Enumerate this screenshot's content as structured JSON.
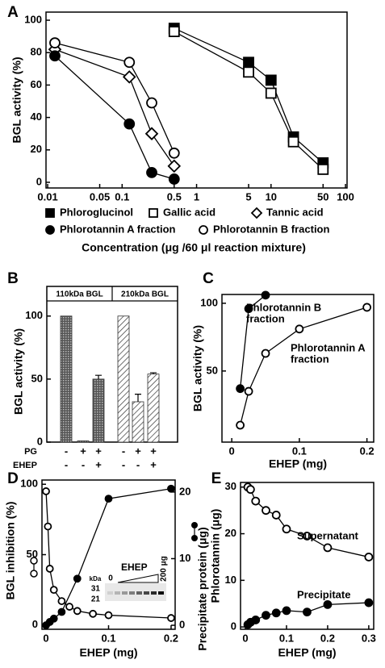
{
  "chart_data": [
    {
      "panel": "A",
      "type": "line",
      "xscale": "log",
      "ylabel": "BGL activity (%)",
      "xlabel": "Concentration (μg /60 μl reaction mixture)",
      "xlim": [
        0.0095,
        105
      ],
      "ylim": [
        -3.5,
        105
      ],
      "xticks": [
        0.01,
        0.05,
        0.1,
        0.5,
        1,
        5,
        10,
        50,
        100
      ],
      "yticks": [
        0,
        20,
        40,
        60,
        80,
        100
      ],
      "series": [
        {
          "name": "Phloroglucinol",
          "color": "#000000",
          "marker": "square",
          "filled": true,
          "x": [
            0.5,
            5,
            10,
            20,
            50
          ],
          "values": [
            95,
            74,
            63,
            28,
            12
          ]
        },
        {
          "name": "Gallic acid",
          "color": "#000000",
          "marker": "square",
          "filled": false,
          "x": [
            0.5,
            5,
            10,
            20,
            50
          ],
          "values": [
            93,
            68,
            55,
            25,
            8
          ]
        },
        {
          "name": "Tannic acid",
          "color": "#000000",
          "marker": "diamond",
          "filled": false,
          "x": [
            0.0125,
            0.125,
            0.25,
            0.5
          ],
          "values": [
            82,
            65,
            30,
            10
          ]
        },
        {
          "name": "Phlorotannin A fraction",
          "color": "#000000",
          "marker": "circle",
          "filled": true,
          "x": [
            0.0125,
            0.125,
            0.25,
            0.5
          ],
          "values": [
            78,
            36,
            6,
            2
          ]
        },
        {
          "name": "Phlorotannin B fraction",
          "color": "#000000",
          "marker": "circle",
          "filled": false,
          "x": [
            0.0125,
            0.125,
            0.25,
            0.5
          ],
          "values": [
            86,
            74,
            49,
            18
          ]
        }
      ]
    },
    {
      "panel": "B",
      "type": "bar",
      "ylabel": "BGL activity (%)",
      "ylim": [
        0,
        112
      ],
      "yticks": [
        0,
        50,
        100
      ],
      "groups": [
        "110kDa BGL",
        "210kDa BGL"
      ],
      "values": [
        100,
        1,
        50,
        100,
        32,
        54
      ],
      "errors": [
        0,
        0,
        3,
        0,
        6,
        1
      ],
      "patterns": [
        "crosshatch",
        "crosshatch",
        "crosshatch",
        "hatch",
        "hatch",
        "hatch"
      ],
      "rows": [
        {
          "label": "PG",
          "signs": [
            "-",
            "+",
            "+",
            "-",
            "+",
            "+"
          ]
        },
        {
          "label": "EHEP",
          "signs": [
            "-",
            "-",
            "+",
            "-",
            "-",
            "+"
          ]
        }
      ]
    },
    {
      "panel": "C",
      "type": "line",
      "ylabel": "BGL activity (%)",
      "xlabel": "EHEP (mg)",
      "xlim": [
        -0.0145,
        0.21
      ],
      "ylim": [
        -2.5,
        106.5
      ],
      "xticks": [
        0,
        0.1,
        0.2
      ],
      "yticks": [
        50,
        100
      ],
      "series": [
        {
          "color": "#000000",
          "marker": "circle",
          "filled": true,
          "x": [
            0.0125,
            0.025,
            0.05
          ],
          "values": [
            37,
            96,
            106
          ]
        },
        {
          "color": "#000000",
          "marker": "circle",
          "filled": false,
          "x": [
            0.0125,
            0.025,
            0.05,
            0.1,
            0.2
          ],
          "values": [
            10,
            35,
            63,
            81,
            97
          ]
        }
      ],
      "annotations": [
        [
          "Phlorotannin B",
          "fraction"
        ],
        [
          "Phlorotannin A",
          "fraction"
        ]
      ]
    },
    {
      "panel": "D",
      "type": "line",
      "ylabel": "BGL inhibition (%)",
      "y2label": "Precipitate protein (μg)",
      "xlabel": "EHEP (mg)",
      "xlim": [
        -0.0065,
        0.2065
      ],
      "ylim": [
        -3,
        103
      ],
      "y2lim": [
        -0.6,
        21.8
      ],
      "xticks": [
        0,
        0.1,
        0.2
      ],
      "yticks": [
        0,
        50,
        100
      ],
      "y2ticks": [
        0,
        10,
        20
      ],
      "series": [
        {
          "color": "#000000",
          "marker": "circle",
          "filled": false,
          "x": [
            0,
            0.003,
            0.006,
            0.0125,
            0.025,
            0.0375,
            0.05,
            0.075,
            0.1,
            0.2
          ],
          "values": [
            95,
            70,
            40,
            25,
            17,
            13,
            10,
            8,
            7,
            5
          ]
        },
        {
          "color": "#000000",
          "marker": "circle",
          "filled": true,
          "axis": "y2",
          "x": [
            0,
            0.006,
            0.0125,
            0.025,
            0.05,
            0.1,
            0.2
          ],
          "values": [
            0,
            0.5,
            1,
            2,
            7,
            19,
            20.5
          ]
        }
      ],
      "inset": {
        "title": "EHEP",
        "max_label": "200 μg",
        "unit": "kDa",
        "markers": [
          "31",
          "21"
        ],
        "lane_start": "0"
      }
    },
    {
      "panel": "E",
      "type": "line",
      "ylabel": "Phlorotannin (μg)",
      "xlabel": "EHEP (mg)",
      "xlim": [
        -0.0118,
        0.312
      ],
      "ylim": [
        -0.5,
        31
      ],
      "xticks": [
        0,
        0.1,
        0.2,
        0.3
      ],
      "yticks": [
        0,
        10,
        20,
        30
      ],
      "series": [
        {
          "color": "#000000",
          "marker": "circle",
          "filled": false,
          "x": [
            0.006,
            0.0125,
            0.025,
            0.05,
            0.075,
            0.1,
            0.15,
            0.2,
            0.3
          ],
          "values": [
            30,
            29.5,
            27,
            25,
            24,
            21,
            19.5,
            17,
            15
          ]
        },
        {
          "color": "#000000",
          "marker": "circle",
          "filled": true,
          "x": [
            0.006,
            0.0125,
            0.025,
            0.05,
            0.075,
            0.1,
            0.15,
            0.2,
            0.3
          ],
          "values": [
            0.5,
            1,
            1.5,
            2.5,
            3,
            3.5,
            3.2,
            4.8,
            5.2
          ]
        }
      ],
      "annotations": [
        [
          "Supernatant"
        ],
        [
          "Precipitate"
        ]
      ]
    }
  ]
}
